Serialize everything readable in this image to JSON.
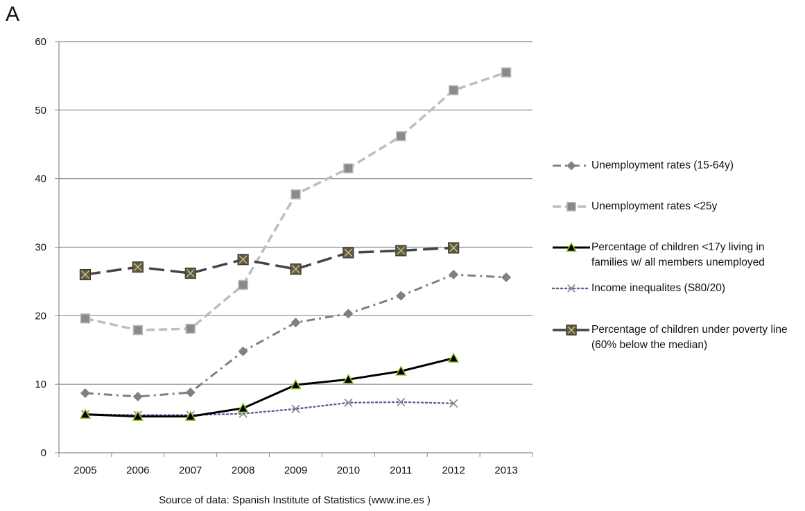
{
  "panel_label": "A",
  "source": "Source of data: Spanish Institute of Statistics  (www.ine.es )",
  "colors": {
    "unemp_total": "#808080",
    "unemp_young": "#bdbdbd",
    "children_unemployed": "#000000",
    "income": "#6a5d9e",
    "children_poverty": "#444444",
    "grid": "#888888",
    "triangle_outline": "#9acd32"
  },
  "chart_data": {
    "type": "line",
    "title": "",
    "xlabel": "",
    "ylabel": "",
    "ylim": [
      0,
      60
    ],
    "yticks": [
      0,
      10,
      20,
      30,
      40,
      50,
      60
    ],
    "grid": "horizontal",
    "legend_position": "right",
    "categories": [
      "2005",
      "2006",
      "2007",
      "2008",
      "2009",
      "2010",
      "2011",
      "2012",
      "2013"
    ],
    "series": [
      {
        "key": "unemp_total",
        "name": "Unemployment rates (15-64y)",
        "marker": "diamond",
        "dash": "dashdot",
        "values": [
          8.7,
          8.2,
          8.8,
          14.8,
          19.0,
          20.3,
          22.9,
          26.0,
          25.6
        ]
      },
      {
        "key": "unemp_young",
        "name": "Unemployment rates <25y",
        "marker": "square",
        "dash": "dashed",
        "values": [
          19.6,
          17.9,
          18.1,
          24.5,
          37.7,
          41.5,
          46.2,
          52.9,
          55.5
        ]
      },
      {
        "key": "children_unemployed",
        "name": "Percentage of children <17y living in families w/ all members  unemployed",
        "marker": "triangle",
        "dash": "solid",
        "values": [
          5.6,
          5.3,
          5.3,
          6.5,
          9.9,
          10.7,
          11.9,
          13.8,
          null
        ]
      },
      {
        "key": "income",
        "name": "Income inequalites (S80/20)",
        "marker": "x",
        "dash": "dotted",
        "values": [
          5.6,
          5.5,
          5.5,
          5.7,
          6.4,
          7.3,
          7.4,
          7.2,
          null
        ]
      },
      {
        "key": "children_poverty",
        "name": "Percentage of children under poverty line (60% below the median)",
        "marker": "squarex",
        "dash": "longdash",
        "values": [
          26.0,
          27.1,
          26.2,
          28.2,
          26.8,
          29.2,
          29.5,
          29.9,
          null
        ]
      }
    ]
  }
}
